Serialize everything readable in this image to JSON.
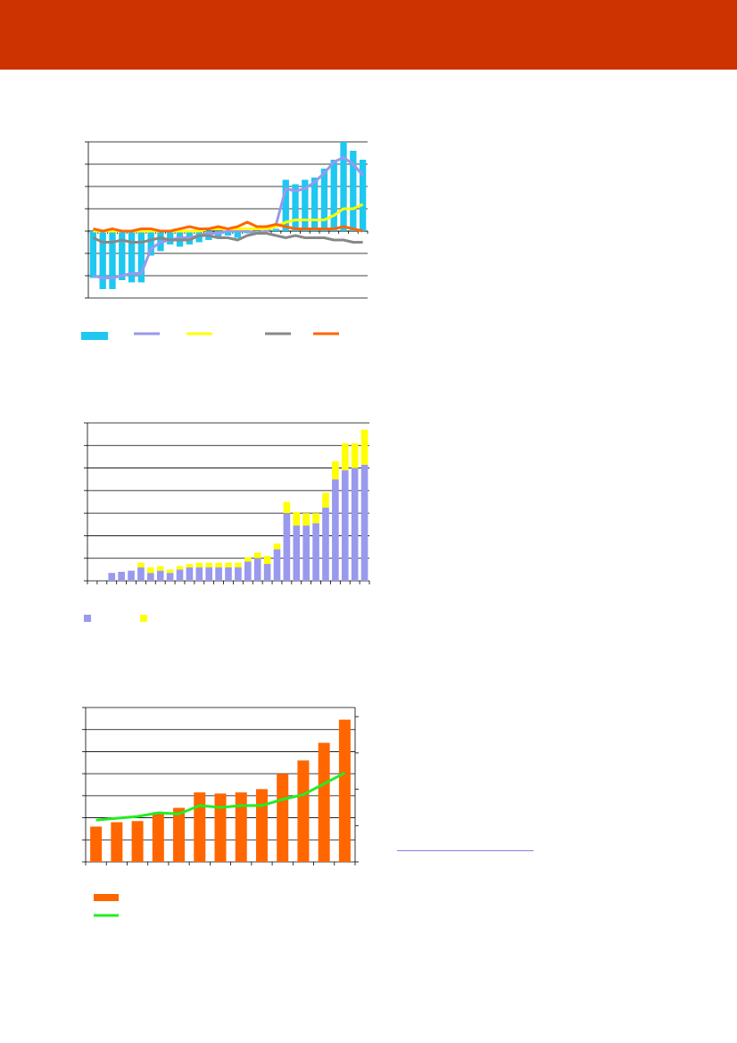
{
  "header": {
    "background": "#cc3300"
  },
  "chart_data": [
    {
      "type": "bar+line",
      "bar_series": {
        "name": "",
        "color": "#1ec8f0",
        "values": [
          -2.1,
          -2.6,
          -2.6,
          -2.2,
          -2.3,
          -2.3,
          -1.1,
          -0.9,
          -0.6,
          -0.7,
          -0.6,
          -0.5,
          -0.4,
          -0.3,
          -0.2,
          -0.3,
          -0.1,
          0.0,
          0.1,
          0.1,
          2.3,
          2.1,
          2.3,
          2.4,
          2.8,
          3.2,
          4.0,
          3.6,
          3.2
        ]
      },
      "line_series": [
        {
          "name": "",
          "color": "#9999ee",
          "values": [
            -2.0,
            -2.1,
            -2.1,
            -2.0,
            -1.9,
            -1.9,
            -0.8,
            -0.5,
            -0.4,
            -0.3,
            -0.3,
            -0.2,
            -0.1,
            -0.1,
            0.0,
            0.0,
            0.0,
            -0.1,
            0.0,
            0.3,
            1.9,
            1.8,
            1.9,
            2.2,
            2.6,
            3.1,
            3.3,
            3.0,
            2.5
          ]
        },
        {
          "name": "",
          "color": "#ffff00",
          "values": [
            0.0,
            0.0,
            0.0,
            0.0,
            0.0,
            0.0,
            0.0,
            0.0,
            0.0,
            0.0,
            0.0,
            0.0,
            0.1,
            0.1,
            0.1,
            0.1,
            0.1,
            0.1,
            0.1,
            0.2,
            0.4,
            0.5,
            0.5,
            0.5,
            0.5,
            0.7,
            1.0,
            1.0,
            1.2
          ]
        },
        {
          "name": "",
          "color": "#888888",
          "values": [
            -0.3,
            -0.5,
            -0.5,
            -0.4,
            -0.5,
            -0.5,
            -0.4,
            -0.3,
            -0.4,
            -0.4,
            -0.4,
            -0.2,
            -0.2,
            -0.3,
            -0.3,
            -0.4,
            -0.2,
            -0.1,
            -0.1,
            -0.2,
            -0.3,
            -0.2,
            -0.3,
            -0.3,
            -0.3,
            -0.4,
            -0.4,
            -0.5,
            -0.5
          ]
        },
        {
          "name": "",
          "color": "#ff6600",
          "values": [
            0.1,
            0.0,
            0.1,
            0.0,
            0.0,
            0.1,
            0.1,
            0.0,
            0.0,
            0.1,
            0.2,
            0.1,
            0.1,
            0.2,
            0.1,
            0.2,
            0.4,
            0.2,
            0.2,
            0.3,
            0.2,
            0.1,
            0.1,
            0.1,
            0.1,
            0.1,
            0.2,
            0.1,
            0.0
          ]
        }
      ],
      "ylim": [
        -3,
        4
      ],
      "grid": true,
      "legend_position": "bottom"
    },
    {
      "type": "stacked_bar",
      "series": [
        {
          "name": "",
          "color": "#9999ee",
          "values": [
            0,
            0,
            0.35,
            0.4,
            0.45,
            0.6,
            0.35,
            0.45,
            0.35,
            0.5,
            0.6,
            0.6,
            0.6,
            0.6,
            0.6,
            0.6,
            0.85,
            1.0,
            0.75,
            1.4,
            3.0,
            2.45,
            2.45,
            2.55,
            3.25,
            4.5,
            4.9,
            5.0,
            5.15
          ]
        },
        {
          "name": "",
          "color": "#ffff00",
          "values": [
            0,
            0,
            0,
            0,
            0,
            0.2,
            0.25,
            0.2,
            0.15,
            0.15,
            0.15,
            0.2,
            0.2,
            0.2,
            0.2,
            0.2,
            0.2,
            0.25,
            0.35,
            0.25,
            0.5,
            0.6,
            0.55,
            0.45,
            0.65,
            0.8,
            1.2,
            1.1,
            1.55
          ]
        }
      ],
      "ylim": [
        0,
        7
      ],
      "grid": true,
      "legend_position": "bottom"
    },
    {
      "type": "bar+line",
      "bar_series": {
        "name": "",
        "color": "#ff6600",
        "values": [
          1.6,
          1.8,
          1.85,
          2.25,
          2.45,
          3.15,
          3.1,
          3.15,
          3.3,
          4.0,
          4.6,
          5.4,
          6.45
        ]
      },
      "line_series": [
        {
          "name": "",
          "color": "#22ee22",
          "axis": "right",
          "values": [
            1.15,
            1.2,
            1.25,
            1.35,
            1.32,
            1.55,
            1.5,
            1.55,
            1.55,
            1.72,
            1.85,
            2.15,
            2.45
          ]
        }
      ],
      "ylim": [
        0,
        7
      ],
      "y2lim": [
        0,
        4.25
      ],
      "grid": true,
      "legend_position": "bottom-left"
    }
  ],
  "link": {
    "color": "#8080e0"
  }
}
